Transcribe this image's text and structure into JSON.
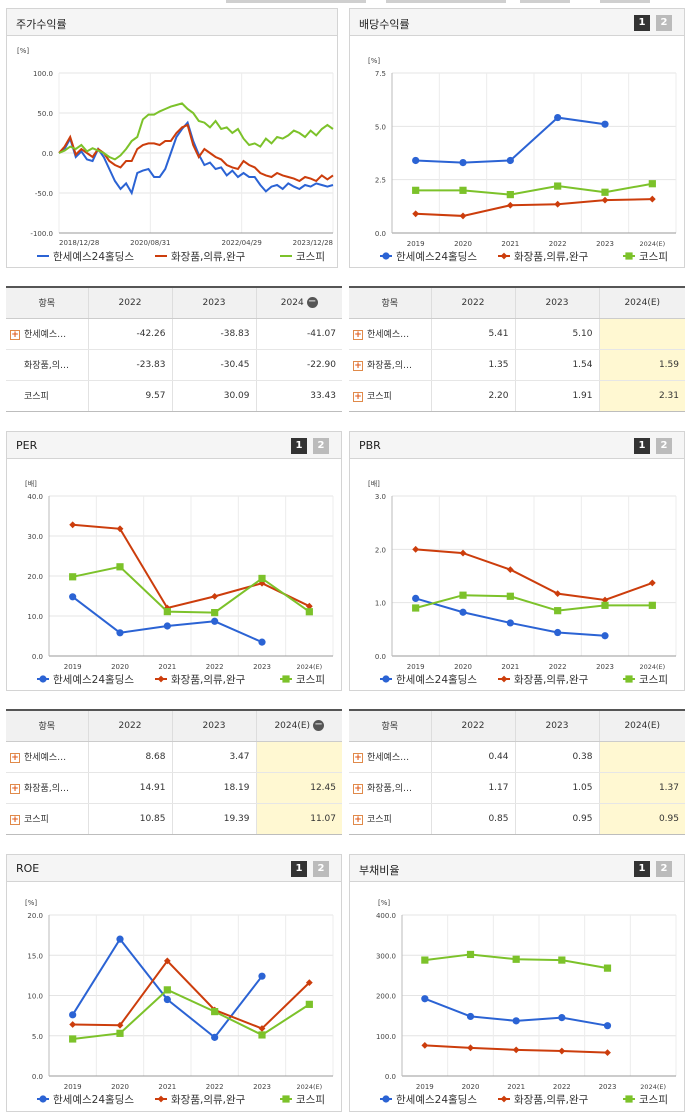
{
  "colors": {
    "hansae": "#2b63d4",
    "cosmetics": "#cc3d0c",
    "kospi": "#7cc22a"
  },
  "legend": [
    "한세예스24홀딩스",
    "화장품,의류,완구",
    "코스피"
  ],
  "pager": {
    "one": "1",
    "two": "2"
  },
  "stock_return": {
    "title": "주가수익률",
    "unit": "[%]",
    "chart_data": {
      "type": "line",
      "title": "주가수익률",
      "ylabel": "[%]",
      "ylim": [
        -100,
        100
      ],
      "yticks": [
        "100.0",
        "50.0",
        "0.0",
        "-50.0",
        "-100.0"
      ],
      "xticks": [
        "2018/12/28",
        "2020/08/31",
        "2022/04/29",
        "2023/12/28"
      ],
      "x_range": [
        0,
        60
      ],
      "series": [
        {
          "name": "한세예스24홀딩스",
          "color": "#2b63d4",
          "values": [
            0,
            5,
            18,
            -5,
            2,
            -8,
            -10,
            5,
            -5,
            -20,
            -35,
            -45,
            -38,
            -50,
            -25,
            -22,
            -20,
            -30,
            -30,
            -20,
            0,
            20,
            30,
            38,
            15,
            -2,
            -15,
            -12,
            -20,
            -18,
            -28,
            -22,
            -30,
            -25,
            -30,
            -30,
            -40,
            -48,
            -42,
            -40,
            -45,
            -38,
            -42,
            -45,
            -40,
            -42,
            -38,
            -40,
            -42,
            -40
          ]
        },
        {
          "name": "화장품,의류,완구",
          "color": "#cc3d0c",
          "values": [
            0,
            8,
            20,
            -2,
            5,
            0,
            -5,
            5,
            0,
            -10,
            -15,
            -18,
            -10,
            -10,
            5,
            10,
            12,
            12,
            10,
            15,
            15,
            25,
            32,
            35,
            10,
            -5,
            5,
            0,
            -5,
            -8,
            -15,
            -18,
            -20,
            -10,
            -15,
            -18,
            -25,
            -28,
            -30,
            -25,
            -28,
            -30,
            -32,
            -35,
            -30,
            -32,
            -35,
            -28,
            -33,
            -28
          ]
        },
        {
          "name": "코스피",
          "color": "#7cc22a",
          "values": [
            0,
            3,
            8,
            5,
            10,
            2,
            6,
            3,
            0,
            -5,
            -8,
            -3,
            5,
            15,
            20,
            42,
            48,
            48,
            52,
            55,
            58,
            60,
            62,
            55,
            50,
            40,
            38,
            32,
            40,
            30,
            32,
            25,
            30,
            18,
            10,
            12,
            8,
            18,
            12,
            20,
            18,
            22,
            28,
            25,
            20,
            28,
            22,
            30,
            35,
            30
          ]
        }
      ]
    }
  },
  "stock_table": {
    "header": [
      "항목",
      "2022",
      "2023",
      "2024"
    ],
    "rows": [
      {
        "name": "한세예스…",
        "v": [
          "-42.26",
          "-38.83",
          "-41.07"
        ]
      },
      {
        "name": "화장품,의…",
        "v": [
          "-23.83",
          "-30.45",
          "-22.90"
        ]
      },
      {
        "name": "코스피",
        "v": [
          "9.57",
          "30.09",
          "33.43"
        ]
      }
    ]
  },
  "dividend": {
    "title": "배당수익률",
    "unit": "[%]",
    "chart_data": {
      "type": "line",
      "title": "배당수익률",
      "ylabel": "[%]",
      "ylim": [
        0,
        7.5
      ],
      "yticks": [
        "7.5",
        "5.0",
        "2.5",
        "0.0"
      ],
      "categories": [
        "2019",
        "2020",
        "2021",
        "2022",
        "2023",
        "2024(E)"
      ],
      "series": [
        {
          "name": "한세예스24홀딩스",
          "values": [
            3.4,
            3.3,
            3.4,
            5.41,
            5.1,
            null
          ]
        },
        {
          "name": "화장품,의류,완구",
          "values": [
            0.9,
            0.8,
            1.3,
            1.35,
            1.54,
            1.59
          ]
        },
        {
          "name": "코스피",
          "values": [
            2.0,
            2.0,
            1.8,
            2.2,
            1.91,
            2.31
          ]
        }
      ]
    }
  },
  "dividend_table": {
    "header": [
      "항목",
      "2022",
      "2023",
      "2024(E)"
    ],
    "rows": [
      {
        "name": "한세예스…",
        "v": [
          "5.41",
          "5.10",
          ""
        ]
      },
      {
        "name": "화장품,의…",
        "v": [
          "1.35",
          "1.54",
          "1.59"
        ]
      },
      {
        "name": "코스피",
        "v": [
          "2.20",
          "1.91",
          "2.31"
        ]
      }
    ]
  },
  "per": {
    "title": "PER",
    "unit": "[배]",
    "chart_data": {
      "type": "line",
      "title": "PER",
      "ylabel": "[배]",
      "ylim": [
        0,
        40
      ],
      "yticks": [
        "40.0",
        "30.0",
        "20.0",
        "10.0",
        "0.0"
      ],
      "categories": [
        "2019",
        "2020",
        "2021",
        "2022",
        "2023",
        "2024(E)"
      ],
      "series": [
        {
          "name": "한세예스24홀딩스",
          "values": [
            14.8,
            5.8,
            7.5,
            8.68,
            3.47,
            null
          ]
        },
        {
          "name": "화장품,의류,완구",
          "values": [
            32.8,
            31.8,
            12.0,
            14.91,
            18.19,
            12.45
          ]
        },
        {
          "name": "코스피",
          "values": [
            19.8,
            22.3,
            11.1,
            10.85,
            19.39,
            11.07
          ]
        }
      ]
    }
  },
  "per_table": {
    "header": [
      "항목",
      "2022",
      "2023",
      "2024(E)"
    ],
    "rows": [
      {
        "name": "한세예스…",
        "v": [
          "8.68",
          "3.47",
          ""
        ]
      },
      {
        "name": "화장품,의…",
        "v": [
          "14.91",
          "18.19",
          "12.45"
        ]
      },
      {
        "name": "코스피",
        "v": [
          "10.85",
          "19.39",
          "11.07"
        ]
      }
    ]
  },
  "pbr": {
    "title": "PBR",
    "unit": "[배]",
    "chart_data": {
      "type": "line",
      "title": "PBR",
      "ylabel": "[배]",
      "ylim": [
        0,
        3
      ],
      "yticks": [
        "3.0",
        "2.0",
        "1.0",
        "0.0"
      ],
      "categories": [
        "2019",
        "2020",
        "2021",
        "2022",
        "2023",
        "2024(E)"
      ],
      "series": [
        {
          "name": "한세예스24홀딩스",
          "values": [
            1.08,
            0.82,
            0.62,
            0.44,
            0.38,
            null
          ]
        },
        {
          "name": "화장품,의류,완구",
          "values": [
            2.0,
            1.93,
            1.62,
            1.17,
            1.05,
            1.37
          ]
        },
        {
          "name": "코스피",
          "values": [
            0.9,
            1.14,
            1.12,
            0.85,
            0.95,
            0.95
          ]
        }
      ]
    }
  },
  "pbr_table": {
    "header": [
      "항목",
      "2022",
      "2023",
      "2024(E)"
    ],
    "rows": [
      {
        "name": "한세예스…",
        "v": [
          "0.44",
          "0.38",
          ""
        ]
      },
      {
        "name": "화장품,의…",
        "v": [
          "1.17",
          "1.05",
          "1.37"
        ]
      },
      {
        "name": "코스피",
        "v": [
          "0.85",
          "0.95",
          "0.95"
        ]
      }
    ]
  },
  "roe": {
    "title": "ROE",
    "unit": "[%]",
    "chart_data": {
      "type": "line",
      "title": "ROE",
      "ylabel": "[%]",
      "ylim": [
        0,
        20
      ],
      "yticks": [
        "20.0",
        "15.0",
        "10.0",
        "5.0",
        "0.0"
      ],
      "categories": [
        "2019",
        "2020",
        "2021",
        "2022",
        "2023",
        "2024(E)"
      ],
      "series": [
        {
          "name": "한세예스24홀딩스",
          "values": [
            7.6,
            17.0,
            9.5,
            4.8,
            12.4,
            null
          ]
        },
        {
          "name": "화장품,의류,완구",
          "values": [
            6.4,
            6.3,
            14.3,
            8.2,
            5.9,
            11.6
          ]
        },
        {
          "name": "코스피",
          "values": [
            4.6,
            5.3,
            10.7,
            8.0,
            5.1,
            8.9
          ]
        }
      ]
    }
  },
  "debt": {
    "title": "부채비율",
    "unit": "[%]",
    "chart_data": {
      "type": "line",
      "title": "부채비율",
      "ylabel": "[%]",
      "ylim": [
        0,
        400
      ],
      "yticks": [
        "400.0",
        "300.0",
        "200.0",
        "100.0",
        "0.0"
      ],
      "categories": [
        "2019",
        "2020",
        "2021",
        "2022",
        "2023",
        "2024(E)"
      ],
      "series": [
        {
          "name": "한세예스24홀딩스",
          "values": [
            192,
            148,
            137,
            145,
            125,
            null
          ]
        },
        {
          "name": "화장품,의류,완구",
          "values": [
            76,
            70,
            65,
            62,
            58,
            null
          ]
        },
        {
          "name": "코스피",
          "values": [
            288,
            302,
            290,
            288,
            268,
            null
          ]
        }
      ]
    }
  }
}
